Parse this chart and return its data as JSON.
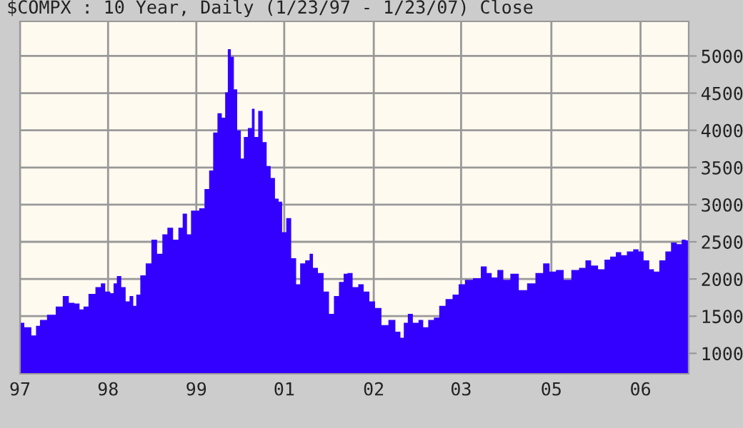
{
  "chart_data": {
    "type": "area",
    "title": "$COMPX : 10 Year, Daily (1/23/97 - 1/23/07) Close",
    "x": [
      "1997-01-23",
      "1997-03-11",
      "1997-04-10",
      "1997-05-01",
      "1997-05-23",
      "1997-07-17",
      "1997-08-26",
      "1997-10-02",
      "1997-10-31",
      "1997-12-03",
      "1997-12-25",
      "1998-01-16",
      "1998-02-17",
      "1998-04-02",
      "1998-04-17",
      "1998-05-20",
      "1998-06-11",
      "1998-06-25",
      "1998-07-17",
      "1998-08-12",
      "1998-09-03",
      "1998-09-24",
      "1998-10-13",
      "1998-10-27",
      "1998-11-26",
      "1998-12-25",
      "1999-01-27",
      "1999-02-25",
      "1999-03-26",
      "1999-04-21",
      "1999-05-27",
      "1999-06-18",
      "1999-07-13",
      "1999-08-04",
      "1999-08-26",
      "1999-09-14",
      "1999-10-13",
      "1999-11-11",
      "1999-12-03",
      "1999-12-25",
      "2000-01-19",
      "2000-02-10",
      "2000-02-25",
      "2000-03-10",
      "2000-03-29",
      "2000-04-12",
      "2000-05-04",
      "2000-05-22",
      "2000-06-06",
      "2000-07-05",
      "2000-07-20",
      "2000-08-03",
      "2000-08-29",
      "2000-09-20",
      "2000-10-12",
      "2000-11-03",
      "2000-11-28",
      "2000-12-13",
      "2001-01-05",
      "2001-01-27",
      "2001-02-28",
      "2001-03-22",
      "2001-04-13",
      "2001-05-16",
      "2001-05-31",
      "2001-06-22",
      "2001-07-24",
      "2001-08-23",
      "2001-09-21",
      "2001-10-16",
      "2001-11-15",
      "2001-12-06",
      "2001-12-28",
      "2002-01-30",
      "2002-02-28",
      "2002-03-30",
      "2002-05-01",
      "2002-05-31",
      "2002-07-10",
      "2002-08-15",
      "2002-09-24",
      "2002-10-09",
      "2002-10-31",
      "2002-11-22",
      "2002-12-25",
      "2003-01-23",
      "2003-02-14",
      "2003-03-19",
      "2003-04-17",
      "2003-05-16",
      "2003-06-25",
      "2003-08-01",
      "2003-08-30",
      "2003-10-09",
      "2003-11-26",
      "2004-01-02",
      "2004-01-30",
      "2004-02-25",
      "2004-04-01",
      "2004-04-30",
      "2004-06-17",
      "2004-07-31",
      "2004-09-16",
      "2004-10-30",
      "2004-12-09",
      "2005-01-08",
      "2005-02-17",
      "2005-04-02",
      "2005-05-12",
      "2005-06-25",
      "2005-07-21",
      "2005-08-26",
      "2005-10-05",
      "2005-11-04",
      "2005-12-06",
      "2006-01-05",
      "2006-02-03",
      "2006-03-08",
      "2006-04-13",
      "2006-05-05",
      "2006-06-07",
      "2006-07-06",
      "2006-07-28",
      "2006-09-03",
      "2006-10-02",
      "2006-11-04",
      "2006-12-03",
      "2006-12-28",
      "2007-01-19"
    ],
    "series": [
      {
        "color": "#3300ff",
        "values": [
          1410,
          1350,
          1240,
          1370,
          1450,
          1520,
          1630,
          1770,
          1680,
          1670,
          1590,
          1630,
          1800,
          1890,
          1940,
          1830,
          1810,
          1940,
          2040,
          1890,
          1700,
          1770,
          1640,
          1790,
          2050,
          2210,
          2530,
          2340,
          2600,
          2690,
          2530,
          2690,
          2880,
          2600,
          2920,
          2920,
          2950,
          3210,
          3460,
          3970,
          4230,
          4170,
          4510,
          5090,
          4990,
          4550,
          4000,
          3620,
          3910,
          4030,
          4290,
          3910,
          4260,
          3840,
          3520,
          3360,
          3080,
          3040,
          2630,
          2820,
          2280,
          1930,
          2210,
          2250,
          2340,
          2150,
          2080,
          1830,
          1530,
          1770,
          1960,
          2070,
          2080,
          1890,
          1930,
          1830,
          1700,
          1610,
          1380,
          1450,
          1290,
          1210,
          1410,
          1530,
          1410,
          1450,
          1350,
          1450,
          1480,
          1640,
          1730,
          1790,
          1930,
          1990,
          2010,
          2170,
          2080,
          2020,
          2120,
          1990,
          2070,
          1850,
          1940,
          2080,
          2210,
          2100,
          2120,
          1990,
          2120,
          2150,
          2250,
          2180,
          2130,
          2260,
          2300,
          2360,
          2320,
          2370,
          2400,
          2370,
          2250,
          2130,
          2100,
          2250,
          2370,
          2490,
          2470,
          2530,
          2520
        ]
      }
    ],
    "xlim": [
      "1997-01-23",
      "2007-01-23"
    ],
    "xticks": [
      {
        "value": "1997-01-23",
        "label": "97"
      },
      {
        "value": "1998-05-19",
        "label": "98"
      },
      {
        "value": "1999-09-13",
        "label": "99"
      },
      {
        "value": "2001-01-05",
        "label": "01"
      },
      {
        "value": "2002-05-09",
        "label": "02"
      },
      {
        "value": "2003-08-29",
        "label": "03"
      },
      {
        "value": "2005-01-03",
        "label": "05"
      },
      {
        "value": "2006-05-05",
        "label": "06"
      }
    ],
    "ylim": [
      725,
      5465
    ],
    "yticks": [
      1000,
      1500,
      2000,
      2500,
      3000,
      3500,
      4000,
      4500,
      5000
    ],
    "grid": true
  }
}
